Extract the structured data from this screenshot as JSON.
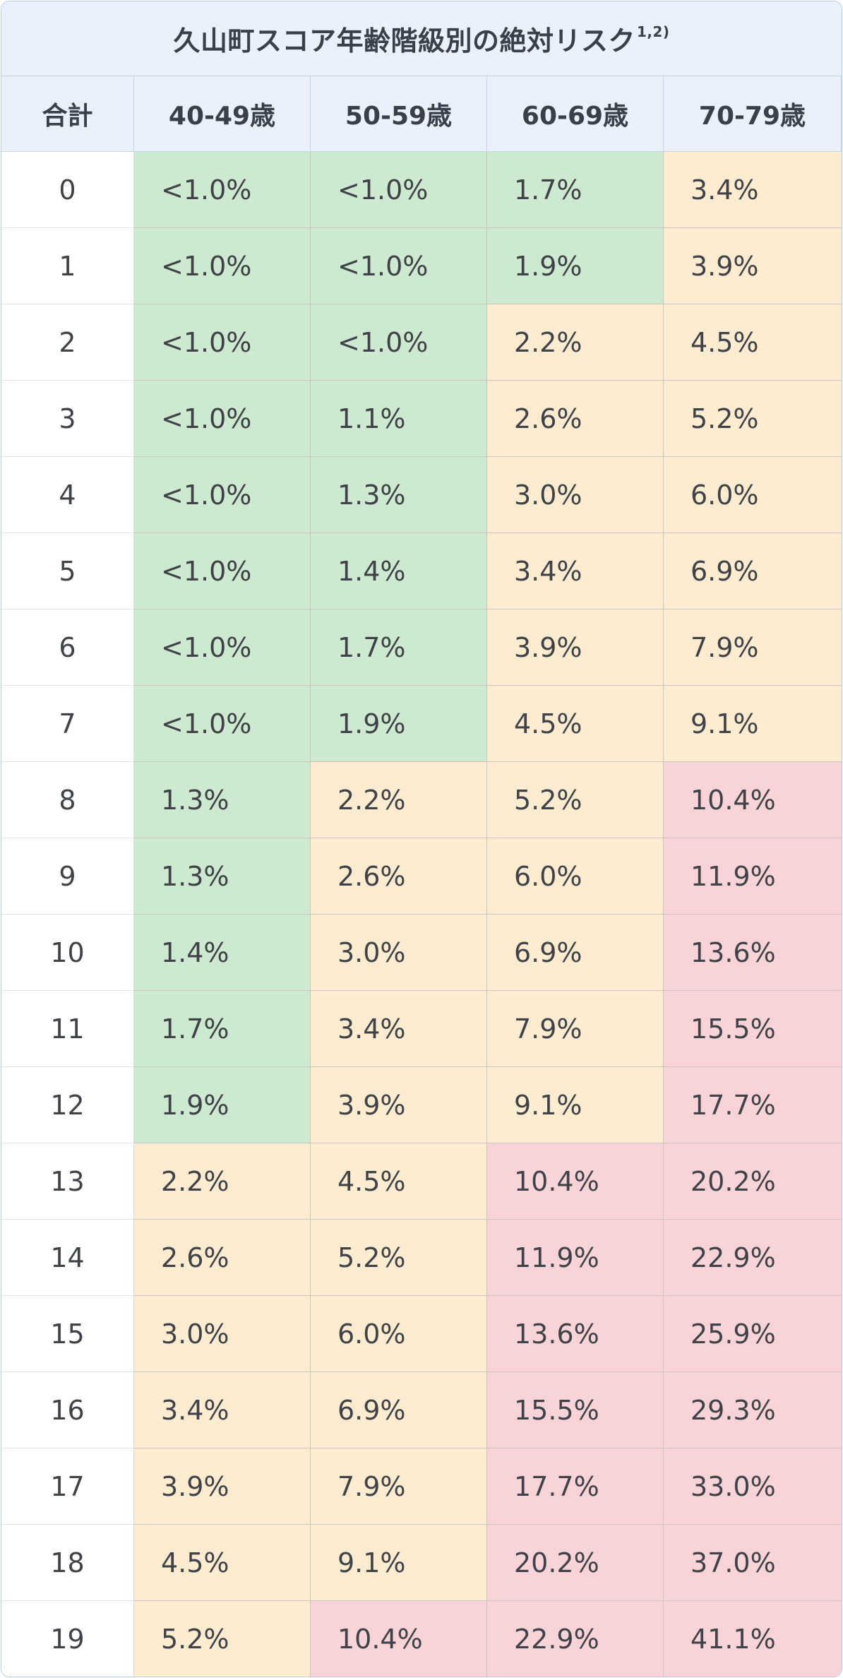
{
  "title": {
    "text": "久山町スコア年齢階級別の絶対リスク",
    "superscript": "1,2)"
  },
  "colors": {
    "header_bg": "#eaf1fd",
    "border": "#b9cdee",
    "green": "#cde9cf",
    "amber": "#fdecd0",
    "red": "#f8d3d8"
  },
  "columns": [
    "合計",
    "40-49歳",
    "50-59歳",
    "60-69歳",
    "70-79歳"
  ],
  "rows": [
    {
      "total": "0",
      "cells": [
        {
          "v": "<1.0%",
          "c": "green"
        },
        {
          "v": "<1.0%",
          "c": "green"
        },
        {
          "v": "1.7%",
          "c": "green"
        },
        {
          "v": "3.4%",
          "c": "amber"
        }
      ]
    },
    {
      "total": "1",
      "cells": [
        {
          "v": "<1.0%",
          "c": "green"
        },
        {
          "v": "<1.0%",
          "c": "green"
        },
        {
          "v": "1.9%",
          "c": "green"
        },
        {
          "v": "3.9%",
          "c": "amber"
        }
      ]
    },
    {
      "total": "2",
      "cells": [
        {
          "v": "<1.0%",
          "c": "green"
        },
        {
          "v": "<1.0%",
          "c": "green"
        },
        {
          "v": "2.2%",
          "c": "amber"
        },
        {
          "v": "4.5%",
          "c": "amber"
        }
      ]
    },
    {
      "total": "3",
      "cells": [
        {
          "v": "<1.0%",
          "c": "green"
        },
        {
          "v": "1.1%",
          "c": "green"
        },
        {
          "v": "2.6%",
          "c": "amber"
        },
        {
          "v": "5.2%",
          "c": "amber"
        }
      ]
    },
    {
      "total": "4",
      "cells": [
        {
          "v": "<1.0%",
          "c": "green"
        },
        {
          "v": "1.3%",
          "c": "green"
        },
        {
          "v": "3.0%",
          "c": "amber"
        },
        {
          "v": "6.0%",
          "c": "amber"
        }
      ]
    },
    {
      "total": "5",
      "cells": [
        {
          "v": "<1.0%",
          "c": "green"
        },
        {
          "v": "1.4%",
          "c": "green"
        },
        {
          "v": "3.4%",
          "c": "amber"
        },
        {
          "v": "6.9%",
          "c": "amber"
        }
      ]
    },
    {
      "total": "6",
      "cells": [
        {
          "v": "<1.0%",
          "c": "green"
        },
        {
          "v": "1.7%",
          "c": "green"
        },
        {
          "v": "3.9%",
          "c": "amber"
        },
        {
          "v": "7.9%",
          "c": "amber"
        }
      ]
    },
    {
      "total": "7",
      "cells": [
        {
          "v": "<1.0%",
          "c": "green"
        },
        {
          "v": "1.9%",
          "c": "green"
        },
        {
          "v": "4.5%",
          "c": "amber"
        },
        {
          "v": "9.1%",
          "c": "amber"
        }
      ]
    },
    {
      "total": "8",
      "cells": [
        {
          "v": "1.3%",
          "c": "green"
        },
        {
          "v": "2.2%",
          "c": "amber"
        },
        {
          "v": "5.2%",
          "c": "amber"
        },
        {
          "v": "10.4%",
          "c": "red"
        }
      ]
    },
    {
      "total": "9",
      "cells": [
        {
          "v": "1.3%",
          "c": "green"
        },
        {
          "v": "2.6%",
          "c": "amber"
        },
        {
          "v": "6.0%",
          "c": "amber"
        },
        {
          "v": "11.9%",
          "c": "red"
        }
      ]
    },
    {
      "total": "10",
      "cells": [
        {
          "v": "1.4%",
          "c": "green"
        },
        {
          "v": "3.0%",
          "c": "amber"
        },
        {
          "v": "6.9%",
          "c": "amber"
        },
        {
          "v": "13.6%",
          "c": "red"
        }
      ]
    },
    {
      "total": "11",
      "cells": [
        {
          "v": "1.7%",
          "c": "green"
        },
        {
          "v": "3.4%",
          "c": "amber"
        },
        {
          "v": "7.9%",
          "c": "amber"
        },
        {
          "v": "15.5%",
          "c": "red"
        }
      ]
    },
    {
      "total": "12",
      "cells": [
        {
          "v": "1.9%",
          "c": "green"
        },
        {
          "v": "3.9%",
          "c": "amber"
        },
        {
          "v": "9.1%",
          "c": "amber"
        },
        {
          "v": "17.7%",
          "c": "red"
        }
      ]
    },
    {
      "total": "13",
      "cells": [
        {
          "v": "2.2%",
          "c": "amber"
        },
        {
          "v": "4.5%",
          "c": "amber"
        },
        {
          "v": "10.4%",
          "c": "red"
        },
        {
          "v": "20.2%",
          "c": "red"
        }
      ]
    },
    {
      "total": "14",
      "cells": [
        {
          "v": "2.6%",
          "c": "amber"
        },
        {
          "v": "5.2%",
          "c": "amber"
        },
        {
          "v": "11.9%",
          "c": "red"
        },
        {
          "v": "22.9%",
          "c": "red"
        }
      ]
    },
    {
      "total": "15",
      "cells": [
        {
          "v": "3.0%",
          "c": "amber"
        },
        {
          "v": "6.0%",
          "c": "amber"
        },
        {
          "v": "13.6%",
          "c": "red"
        },
        {
          "v": "25.9%",
          "c": "red"
        }
      ]
    },
    {
      "total": "16",
      "cells": [
        {
          "v": "3.4%",
          "c": "amber"
        },
        {
          "v": "6.9%",
          "c": "amber"
        },
        {
          "v": "15.5%",
          "c": "red"
        },
        {
          "v": "29.3%",
          "c": "red"
        }
      ]
    },
    {
      "total": "17",
      "cells": [
        {
          "v": "3.9%",
          "c": "amber"
        },
        {
          "v": "7.9%",
          "c": "amber"
        },
        {
          "v": "17.7%",
          "c": "red"
        },
        {
          "v": "33.0%",
          "c": "red"
        }
      ]
    },
    {
      "total": "18",
      "cells": [
        {
          "v": "4.5%",
          "c": "amber"
        },
        {
          "v": "9.1%",
          "c": "amber"
        },
        {
          "v": "20.2%",
          "c": "red"
        },
        {
          "v": "37.0%",
          "c": "red"
        }
      ]
    },
    {
      "total": "19",
      "cells": [
        {
          "v": "5.2%",
          "c": "amber"
        },
        {
          "v": "10.4%",
          "c": "red"
        },
        {
          "v": "22.9%",
          "c": "red"
        },
        {
          "v": "41.1%",
          "c": "red"
        }
      ]
    }
  ]
}
